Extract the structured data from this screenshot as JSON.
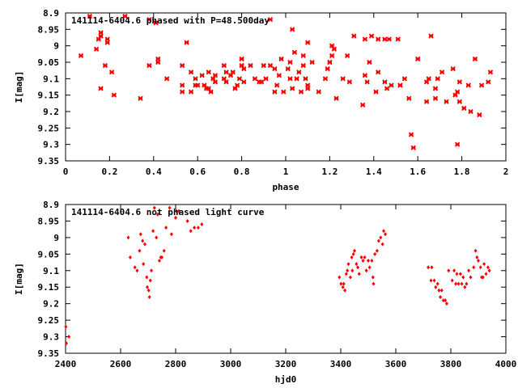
{
  "chart_data": [
    {
      "type": "scatter",
      "title": "141114-6404.6 phased with P=48.500day",
      "xlabel": "phase",
      "ylabel": "I[mag]",
      "xlim": [
        0,
        2
      ],
      "ylim": [
        8.9,
        9.35
      ],
      "y_inverted": true,
      "grid": false,
      "marker": "x-shaped",
      "marker_color": "#ff0000",
      "xticks": [
        "0",
        "0.2",
        "0.4",
        "0.6",
        "0.8",
        "1",
        "1.2",
        "1.4",
        "1.6",
        "1.8",
        "2"
      ],
      "yticks": [
        "8.9",
        "8.95",
        "9",
        "9.05",
        "9.1",
        "9.15",
        "9.2",
        "9.25",
        "9.3",
        "9.35"
      ],
      "points": [
        [
          0.07,
          9.03
        ],
        [
          0.11,
          8.91
        ],
        [
          0.14,
          9.01
        ],
        [
          0.15,
          8.98
        ],
        [
          0.16,
          8.97
        ],
        [
          0.16,
          8.96
        ],
        [
          0.16,
          9.13
        ],
        [
          0.18,
          9.06
        ],
        [
          0.19,
          8.98
        ],
        [
          0.19,
          8.99
        ],
        [
          0.21,
          9.08
        ],
        [
          0.22,
          9.15
        ],
        [
          0.27,
          8.91
        ],
        [
          0.34,
          9.16
        ],
        [
          0.38,
          9.06
        ],
        [
          0.38,
          8.92
        ],
        [
          0.41,
          8.93
        ],
        [
          0.42,
          9.05
        ],
        [
          0.42,
          9.04
        ],
        [
          0.46,
          9.1
        ],
        [
          0.53,
          9.12
        ],
        [
          0.53,
          9.14
        ],
        [
          0.53,
          9.06
        ],
        [
          0.55,
          8.99
        ],
        [
          0.57,
          9.08
        ],
        [
          0.57,
          9.14
        ],
        [
          0.59,
          9.12
        ],
        [
          0.59,
          9.1
        ],
        [
          0.6,
          9.12
        ],
        [
          0.62,
          9.09
        ],
        [
          0.63,
          9.12
        ],
        [
          0.64,
          9.13
        ],
        [
          0.65,
          9.08
        ],
        [
          0.65,
          9.13
        ],
        [
          0.66,
          9.14
        ],
        [
          0.67,
          9.1
        ],
        [
          0.68,
          9.09
        ],
        [
          0.68,
          9.11
        ],
        [
          0.72,
          9.06
        ],
        [
          0.72,
          9.1
        ],
        [
          0.73,
          9.08
        ],
        [
          0.73,
          9.11
        ],
        [
          0.75,
          9.09
        ],
        [
          0.76,
          9.08
        ],
        [
          0.77,
          9.13
        ],
        [
          0.78,
          9.12
        ],
        [
          0.79,
          9.1
        ],
        [
          0.8,
          9.06
        ],
        [
          0.8,
          9.04
        ],
        [
          0.81,
          9.07
        ],
        [
          0.81,
          9.11
        ],
        [
          0.84,
          9.06
        ],
        [
          0.86,
          9.1
        ],
        [
          0.88,
          9.11
        ],
        [
          0.89,
          9.11
        ],
        [
          0.9,
          9.06
        ],
        [
          0.91,
          9.1
        ],
        [
          0.93,
          8.92
        ],
        [
          0.93,
          9.06
        ],
        [
          0.95,
          9.14
        ],
        [
          0.95,
          9.07
        ],
        [
          0.96,
          9.12
        ],
        [
          0.97,
          9.09
        ],
        [
          0.98,
          9.04
        ],
        [
          0.99,
          9.14
        ],
        [
          1.01,
          9.07
        ],
        [
          1.02,
          9.05
        ],
        [
          1.02,
          9.1
        ],
        [
          1.03,
          9.13
        ],
        [
          1.03,
          8.95
        ],
        [
          1.04,
          9.02
        ],
        [
          1.05,
          9.1
        ],
        [
          1.06,
          9.08
        ],
        [
          1.07,
          9.14
        ],
        [
          1.08,
          9.06
        ],
        [
          1.08,
          9.03
        ],
        [
          1.09,
          9.1
        ],
        [
          1.1,
          9.13
        ],
        [
          1.1,
          9.12
        ],
        [
          1.1,
          8.99
        ],
        [
          1.12,
          9.05
        ],
        [
          1.15,
          9.14
        ],
        [
          1.18,
          9.1
        ],
        [
          1.19,
          9.07
        ],
        [
          1.2,
          9.05
        ],
        [
          1.2,
          9.05
        ],
        [
          1.21,
          9.03
        ],
        [
          1.21,
          9.0
        ],
        [
          1.22,
          9.01
        ],
        [
          1.23,
          9.16
        ],
        [
          1.26,
          9.1
        ],
        [
          1.28,
          9.03
        ],
        [
          1.29,
          9.11
        ],
        [
          1.31,
          8.97
        ],
        [
          1.35,
          9.18
        ],
        [
          1.36,
          9.09
        ],
        [
          1.36,
          8.98
        ],
        [
          1.37,
          9.11
        ],
        [
          1.38,
          9.05
        ],
        [
          1.39,
          8.97
        ],
        [
          1.41,
          9.14
        ],
        [
          1.42,
          9.08
        ],
        [
          1.42,
          8.98
        ],
        [
          1.45,
          9.11
        ],
        [
          1.45,
          8.98
        ],
        [
          1.46,
          9.13
        ],
        [
          1.47,
          8.98
        ],
        [
          1.48,
          9.12
        ],
        [
          1.51,
          8.98
        ],
        [
          1.52,
          9.12
        ],
        [
          1.52,
          9.12
        ],
        [
          1.54,
          9.1
        ],
        [
          1.56,
          9.16
        ],
        [
          1.57,
          9.27
        ],
        [
          1.58,
          9.31
        ],
        [
          1.6,
          9.04
        ],
        [
          1.64,
          9.11
        ],
        [
          1.64,
          9.17
        ],
        [
          1.65,
          9.1
        ],
        [
          1.66,
          8.97
        ],
        [
          1.68,
          9.13
        ],
        [
          1.68,
          9.16
        ],
        [
          1.69,
          9.1
        ],
        [
          1.71,
          9.08
        ],
        [
          1.73,
          9.17
        ],
        [
          1.76,
          9.07
        ],
        [
          1.77,
          9.15
        ],
        [
          1.78,
          9.14
        ],
        [
          1.78,
          9.3
        ],
        [
          1.79,
          9.17
        ],
        [
          1.79,
          9.11
        ],
        [
          1.81,
          9.19
        ],
        [
          1.83,
          9.12
        ],
        [
          1.84,
          9.2
        ],
        [
          1.86,
          9.04
        ],
        [
          1.88,
          9.21
        ],
        [
          1.89,
          9.12
        ],
        [
          1.92,
          9.11
        ],
        [
          1.93,
          9.08
        ]
      ]
    },
    {
      "type": "scatter",
      "title": "141114-6404.6 not phased light curve",
      "xlabel": "hjd0",
      "ylabel": "I[mag]",
      "xlim": [
        2400,
        4000
      ],
      "ylim": [
        8.9,
        9.35
      ],
      "y_inverted": true,
      "grid": false,
      "marker": "diamond",
      "marker_color": "#ff0000",
      "xticks": [
        "2400",
        "2600",
        "2800",
        "3000",
        "3200",
        "3400",
        "3600",
        "3800",
        "4000"
      ],
      "yticks": [
        "8.9",
        "8.95",
        "9",
        "9.05",
        "9.1",
        "9.15",
        "9.2",
        "9.25",
        "9.3",
        "9.35"
      ],
      "points": [
        [
          2401,
          9.27
        ],
        [
          2403,
          9.32
        ],
        [
          2412,
          9.3
        ],
        [
          2628,
          9.0
        ],
        [
          2635,
          9.06
        ],
        [
          2652,
          9.09
        ],
        [
          2660,
          9.1
        ],
        [
          2669,
          9.04
        ],
        [
          2673,
          8.99
        ],
        [
          2680,
          9.01
        ],
        [
          2683,
          9.08
        ],
        [
          2688,
          9.02
        ],
        [
          2695,
          9.12
        ],
        [
          2697,
          9.15
        ],
        [
          2702,
          9.16
        ],
        [
          2705,
          9.18
        ],
        [
          2708,
          9.13
        ],
        [
          2712,
          9.1
        ],
        [
          2718,
          8.98
        ],
        [
          2723,
          8.91
        ],
        [
          2730,
          9.0
        ],
        [
          2735,
          8.93
        ],
        [
          2741,
          9.07
        ],
        [
          2746,
          9.06
        ],
        [
          2750,
          9.06
        ],
        [
          2758,
          9.04
        ],
        [
          2765,
          8.97
        ],
        [
          2778,
          8.91
        ],
        [
          2785,
          8.99
        ],
        [
          2800,
          8.94
        ],
        [
          2803,
          8.92
        ],
        [
          2812,
          8.92
        ],
        [
          2843,
          8.95
        ],
        [
          2855,
          8.98
        ],
        [
          2868,
          8.97
        ],
        [
          2882,
          8.97
        ],
        [
          2895,
          8.96
        ],
        [
          3395,
          9.12
        ],
        [
          3401,
          9.14
        ],
        [
          3408,
          9.15
        ],
        [
          3411,
          9.14
        ],
        [
          3415,
          9.16
        ],
        [
          3420,
          9.11
        ],
        [
          3424,
          9.1
        ],
        [
          3428,
          9.08
        ],
        [
          3435,
          9.12
        ],
        [
          3440,
          9.06
        ],
        [
          3442,
          9.1
        ],
        [
          3446,
          9.05
        ],
        [
          3450,
          9.04
        ],
        [
          3457,
          9.08
        ],
        [
          3462,
          9.09
        ],
        [
          3467,
          9.11
        ],
        [
          3475,
          9.06
        ],
        [
          3481,
          9.07
        ],
        [
          3487,
          9.06
        ],
        [
          3493,
          9.1
        ],
        [
          3500,
          9.07
        ],
        [
          3505,
          9.09
        ],
        [
          3513,
          9.07
        ],
        [
          3517,
          9.12
        ],
        [
          3519,
          9.14
        ],
        [
          3524,
          9.05
        ],
        [
          3532,
          9.04
        ],
        [
          3538,
          9.01
        ],
        [
          3545,
          9.0
        ],
        [
          3552,
          9.02
        ],
        [
          3556,
          8.98
        ],
        [
          3562,
          8.99
        ],
        [
          3718,
          9.09
        ],
        [
          3728,
          9.13
        ],
        [
          3731,
          9.09
        ],
        [
          3740,
          9.13
        ],
        [
          3745,
          9.15
        ],
        [
          3752,
          9.14
        ],
        [
          3757,
          9.16
        ],
        [
          3762,
          9.18
        ],
        [
          3767,
          9.16
        ],
        [
          3773,
          9.19
        ],
        [
          3780,
          9.19
        ],
        [
          3785,
          9.2
        ],
        [
          3792,
          9.1
        ],
        [
          3805,
          9.13
        ],
        [
          3812,
          9.1
        ],
        [
          3818,
          9.14
        ],
        [
          3822,
          9.11
        ],
        [
          3828,
          9.14
        ],
        [
          3835,
          9.11
        ],
        [
          3840,
          9.14
        ],
        [
          3845,
          9.12
        ],
        [
          3851,
          9.15
        ],
        [
          3857,
          9.14
        ],
        [
          3865,
          9.1
        ],
        [
          3872,
          9.12
        ],
        [
          3883,
          9.09
        ],
        [
          3890,
          9.04
        ],
        [
          3895,
          9.06
        ],
        [
          3900,
          9.07
        ],
        [
          3908,
          9.09
        ],
        [
          3912,
          9.12
        ],
        [
          3917,
          9.12
        ],
        [
          3921,
          9.08
        ],
        [
          3928,
          9.11
        ],
        [
          3935,
          9.09
        ],
        [
          3940,
          9.1
        ]
      ]
    }
  ]
}
